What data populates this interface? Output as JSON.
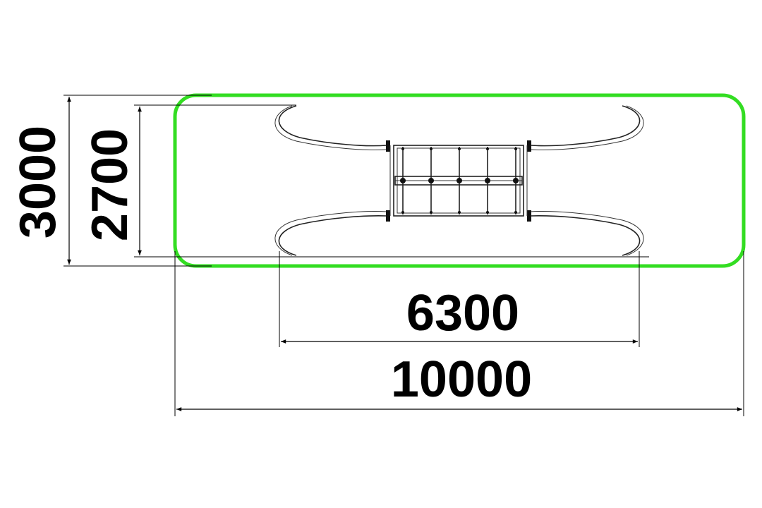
{
  "drawing": {
    "zone_color": "#33dd22",
    "dimensions": {
      "overall_length": "10000",
      "equipment_length": "6300",
      "overall_width": "3000",
      "equipment_width": "2700"
    }
  }
}
